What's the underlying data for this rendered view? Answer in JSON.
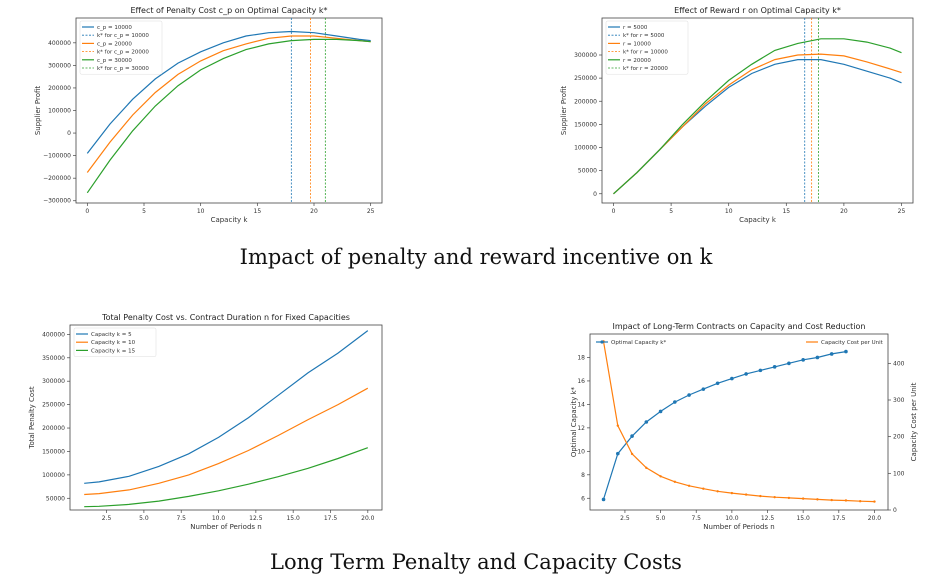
{
  "captions": {
    "top": "Impact of penalty and reward incentive on k",
    "bottom": "Long Term Penalty and Capacity Costs"
  },
  "colors": {
    "blue": "#1f77b4",
    "orange": "#ff7f0e",
    "green": "#2ca02c"
  },
  "chart_data": [
    {
      "id": "c1",
      "type": "line",
      "title": "Effect of Penalty Cost c_p on Optimal Capacity k*",
      "xlabel": "Capacity k",
      "ylabel": "Supplier Profit",
      "xlim": [
        -1,
        26
      ],
      "ylim": [
        -310000,
        510000
      ],
      "xticks": [
        0,
        5,
        10,
        15,
        20,
        25
      ],
      "yticks": [
        -300000,
        -200000,
        -100000,
        0,
        100000,
        200000,
        300000,
        400000
      ],
      "ytick_labels": [
        "−300000",
        "−200000",
        "−100000",
        "0",
        "100000",
        "200000",
        "300000",
        "400000"
      ],
      "legend": [
        "c_p = 10000",
        "k* for c_p = 10000",
        "c_p = 20000",
        "k* for c_p = 20000",
        "c_p = 30000",
        "k* for c_p = 30000"
      ],
      "legend_pos": "top-left",
      "series": [
        {
          "name": "c_p = 10000",
          "color": "blue",
          "x": [
            0,
            2,
            4,
            6,
            8,
            10,
            12,
            14,
            16,
            18,
            20,
            22,
            24,
            25
          ],
          "y": [
            -90000,
            40000,
            150000,
            240000,
            310000,
            360000,
            400000,
            430000,
            445000,
            450000,
            445000,
            430000,
            415000,
            410000
          ]
        },
        {
          "name": "c_p = 20000",
          "color": "orange",
          "x": [
            0,
            2,
            4,
            6,
            8,
            10,
            12,
            14,
            16,
            18,
            20,
            22,
            24,
            25
          ],
          "y": [
            -175000,
            -40000,
            80000,
            180000,
            260000,
            320000,
            365000,
            395000,
            420000,
            430000,
            430000,
            420000,
            410000,
            405000
          ]
        },
        {
          "name": "c_p = 30000",
          "color": "green",
          "x": [
            0,
            2,
            4,
            6,
            8,
            10,
            12,
            14,
            16,
            18,
            20,
            22,
            24,
            25
          ],
          "y": [
            -265000,
            -120000,
            10000,
            120000,
            210000,
            280000,
            330000,
            370000,
            395000,
            410000,
            415000,
            415000,
            410000,
            405000
          ]
        }
      ],
      "vlines": [
        {
          "x": 18,
          "color": "blue"
        },
        {
          "x": 19.7,
          "color": "orange"
        },
        {
          "x": 21,
          "color": "green"
        }
      ]
    },
    {
      "id": "c2",
      "type": "line",
      "title": "Effect of Reward r on Optimal Capacity k*",
      "xlabel": "Capacity k",
      "ylabel": "Supplier Profit",
      "xlim": [
        -1,
        26
      ],
      "ylim": [
        -20000,
        380000
      ],
      "xticks": [
        0,
        5,
        10,
        15,
        20,
        25
      ],
      "yticks": [
        0,
        50000,
        100000,
        150000,
        200000,
        250000,
        300000
      ],
      "ytick_labels": [
        "0",
        "50000",
        "100000",
        "150000",
        "200000",
        "250000",
        "300000"
      ],
      "legend": [
        "r = 5000",
        "k* for r = 5000",
        "r = 10000",
        "k* for r = 10000",
        "r = 20000",
        "k* for r = 20000"
      ],
      "legend_pos": "top-left",
      "series": [
        {
          "name": "r = 5000",
          "color": "blue",
          "x": [
            0,
            2,
            4,
            6,
            8,
            10,
            12,
            14,
            16,
            18,
            20,
            22,
            24,
            25
          ],
          "y": [
            0,
            45000,
            95000,
            145000,
            190000,
            230000,
            260000,
            280000,
            290000,
            290000,
            280000,
            265000,
            250000,
            240000
          ]
        },
        {
          "name": "r = 10000",
          "color": "orange",
          "x": [
            0,
            2,
            4,
            6,
            8,
            10,
            12,
            14,
            16,
            18,
            20,
            22,
            24,
            25
          ],
          "y": [
            0,
            45000,
            95000,
            145000,
            195000,
            235000,
            268000,
            290000,
            300000,
            302000,
            298000,
            285000,
            270000,
            262000
          ]
        },
        {
          "name": "r = 20000",
          "color": "green",
          "x": [
            0,
            2,
            4,
            6,
            8,
            10,
            12,
            14,
            16,
            18,
            20,
            22,
            24,
            25
          ],
          "y": [
            0,
            45000,
            95000,
            150000,
            200000,
            245000,
            280000,
            310000,
            325000,
            335000,
            335000,
            328000,
            315000,
            305000
          ]
        }
      ],
      "vlines": [
        {
          "x": 16.6,
          "color": "blue"
        },
        {
          "x": 17.2,
          "color": "orange"
        },
        {
          "x": 17.8,
          "color": "green"
        }
      ]
    },
    {
      "id": "c3",
      "type": "line",
      "title": "Total Penalty Cost vs. Contract Duration n for Fixed Capacities",
      "xlabel": "Number of Periods n",
      "ylabel": "Total Penalty Cost",
      "xlim": [
        0.05,
        20.95
      ],
      "ylim": [
        25000,
        420000
      ],
      "xticks": [
        2.5,
        5.0,
        7.5,
        10.0,
        12.5,
        15.0,
        17.5,
        20.0
      ],
      "xtick_labels": [
        "2.5",
        "5.0",
        "7.5",
        "10.0",
        "12.5",
        "15.0",
        "17.5",
        "20.0"
      ],
      "yticks": [
        50000,
        100000,
        150000,
        200000,
        250000,
        300000,
        350000,
        400000
      ],
      "ytick_labels": [
        "50000",
        "100000",
        "150000",
        "200000",
        "250000",
        "300000",
        "350000",
        "400000"
      ],
      "legend": [
        "Capacity k = 5",
        "Capacity k = 10",
        "Capacity k = 15"
      ],
      "legend_pos": "top-left",
      "series": [
        {
          "name": "Capacity k = 5",
          "color": "blue",
          "x": [
            1,
            2,
            4,
            6,
            8,
            10,
            12,
            14,
            16,
            18,
            20
          ],
          "y": [
            82000,
            85000,
            97000,
            118000,
            145000,
            180000,
            222000,
            270000,
            318000,
            360000,
            408000
          ]
        },
        {
          "name": "Capacity k = 10",
          "color": "orange",
          "x": [
            1,
            2,
            4,
            6,
            8,
            10,
            12,
            14,
            16,
            18,
            20
          ],
          "y": [
            58000,
            60000,
            68000,
            82000,
            100000,
            124000,
            152000,
            184000,
            218000,
            250000,
            285000
          ]
        },
        {
          "name": "Capacity k = 15",
          "color": "green",
          "x": [
            1,
            2,
            4,
            6,
            8,
            10,
            12,
            14,
            16,
            18,
            20
          ],
          "y": [
            32000,
            33000,
            37000,
            44000,
            54000,
            66000,
            80000,
            96000,
            114000,
            135000,
            158000
          ]
        }
      ]
    },
    {
      "id": "c4",
      "type": "line",
      "title": "Impact of Long-Term Contracts on Capacity and Cost Reduction",
      "xlabel": "Number of Periods n",
      "ylabel_left": "Optimal Capacity k*",
      "ylabel_right": "Capacity Cost per Unit",
      "xlim": [
        0.05,
        20.95
      ],
      "ylim_left": [
        5,
        20
      ],
      "ylim_right": [
        0,
        480
      ],
      "xticks": [
        2.5,
        5.0,
        7.5,
        10.0,
        12.5,
        15.0,
        17.5,
        20.0
      ],
      "xtick_labels": [
        "2.5",
        "5.0",
        "7.5",
        "10.0",
        "12.5",
        "15.0",
        "17.5",
        "20.0"
      ],
      "yticks_left": [
        6,
        8,
        10,
        12,
        14,
        16,
        18
      ],
      "yticks_right": [
        0,
        100,
        200,
        300,
        400
      ],
      "legend_left": "Optimal Capacity k*",
      "legend_right": "Capacity Cost per Unit",
      "series": [
        {
          "name": "Optimal Capacity k*",
          "axis": "left",
          "color": "blue",
          "x": [
            1,
            2,
            3,
            4,
            5,
            6,
            7,
            8,
            9,
            10,
            11,
            12,
            13,
            14,
            15,
            16,
            17,
            18
          ],
          "y": [
            5.9,
            9.8,
            11.3,
            12.5,
            13.4,
            14.2,
            14.8,
            15.3,
            15.8,
            16.2,
            16.6,
            16.9,
            17.2,
            17.5,
            17.8,
            18.0,
            18.3,
            18.5
          ]
        },
        {
          "name": "Capacity Cost per Unit",
          "axis": "right",
          "color": "orange",
          "x": [
            1,
            2,
            3,
            4,
            5,
            6,
            7,
            8,
            9,
            10,
            11,
            12,
            13,
            14,
            15,
            16,
            17,
            18,
            19,
            20
          ],
          "y": [
            460,
            230,
            153,
            115,
            92,
            77,
            66,
            58,
            51,
            46,
            42,
            38,
            35,
            33,
            31,
            29,
            27,
            26,
            24,
            23
          ]
        }
      ]
    }
  ]
}
